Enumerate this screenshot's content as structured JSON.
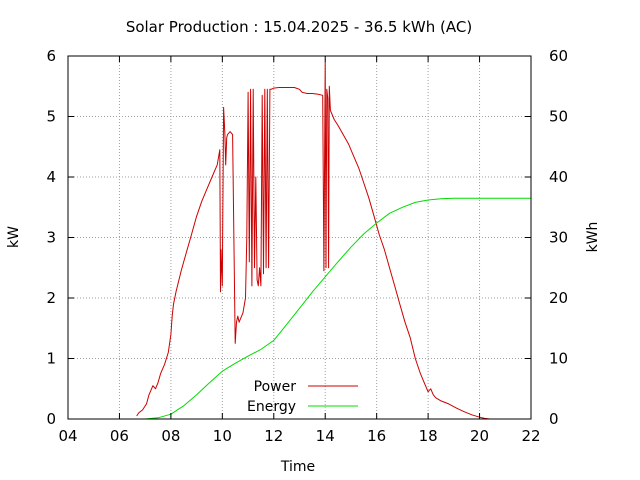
{
  "chart_data": {
    "type": "line",
    "title": "Solar Production : 15.04.2025 - 36.5 kWh (AC)",
    "xlabel": "Time",
    "ylabel": "kW",
    "y2label": "kWh",
    "xlim": [
      4,
      22
    ],
    "ylim": [
      0,
      6
    ],
    "y2lim": [
      0,
      60
    ],
    "xticks": [
      "04",
      "06",
      "08",
      "10",
      "12",
      "14",
      "16",
      "18",
      "20",
      "22"
    ],
    "yticks": [
      "0",
      "1",
      "2",
      "3",
      "4",
      "5",
      "6"
    ],
    "y2ticks": [
      "0",
      "10",
      "20",
      "30",
      "40",
      "50",
      "60"
    ],
    "grid": true,
    "legend_position": "bottom-center",
    "colors": {
      "power": "#cc0000",
      "energy": "#00dd00",
      "axis": "#000000",
      "grid": "#a0a0a0"
    },
    "series": [
      {
        "name": "Power",
        "axis": "left",
        "x": [
          6.67,
          6.75,
          6.9,
          7.05,
          7.15,
          7.3,
          7.4,
          7.5,
          7.6,
          7.75,
          7.9,
          8.0,
          8.05,
          8.1,
          8.2,
          8.4,
          8.6,
          8.8,
          9.0,
          9.2,
          9.4,
          9.6,
          9.8,
          9.9,
          9.93,
          9.95,
          10.0,
          10.05,
          10.1,
          10.13,
          10.17,
          10.2,
          10.3,
          10.4,
          10.5,
          10.55,
          10.6,
          10.65,
          10.7,
          10.8,
          10.9,
          10.95,
          11.0,
          11.05,
          11.1,
          11.15,
          11.2,
          11.25,
          11.3,
          11.35,
          11.4,
          11.45,
          11.5,
          11.55,
          11.6,
          11.65,
          11.7,
          11.75,
          11.8,
          11.85,
          11.9,
          12.0,
          12.2,
          12.5,
          12.8,
          13.0,
          13.1,
          13.3,
          13.5,
          13.7,
          13.9,
          13.95,
          14.0,
          14.03,
          14.06,
          14.1,
          14.13,
          14.16,
          14.2,
          14.25,
          14.35,
          14.5,
          14.7,
          14.9,
          15.1,
          15.3,
          15.5,
          15.7,
          15.9,
          16.1,
          16.3,
          16.5,
          16.7,
          16.9,
          17.1,
          17.3,
          17.5,
          17.7,
          17.9,
          18.0,
          18.1,
          18.2,
          18.3,
          18.5,
          18.8,
          19.1,
          19.4,
          19.7,
          20.0,
          20.2,
          20.4
        ],
        "values": [
          0.05,
          0.1,
          0.15,
          0.25,
          0.4,
          0.55,
          0.5,
          0.6,
          0.75,
          0.9,
          1.1,
          1.4,
          1.7,
          1.9,
          2.1,
          2.45,
          2.75,
          3.05,
          3.35,
          3.6,
          3.8,
          4.0,
          4.2,
          4.45,
          2.1,
          2.8,
          2.2,
          5.15,
          4.7,
          4.2,
          4.65,
          4.7,
          4.75,
          4.7,
          1.25,
          1.6,
          1.7,
          1.6,
          1.65,
          1.75,
          2.0,
          3.0,
          5.4,
          2.6,
          5.45,
          2.2,
          5.45,
          2.5,
          4.0,
          2.3,
          2.2,
          2.5,
          2.2,
          5.35,
          2.4,
          5.45,
          2.5,
          5.45,
          2.5,
          5.45,
          5.45,
          5.47,
          5.48,
          5.48,
          5.48,
          5.45,
          5.4,
          5.38,
          5.38,
          5.37,
          5.35,
          2.45,
          5.9,
          2.5,
          5.45,
          5.3,
          2.5,
          5.5,
          5.1,
          5.05,
          4.95,
          4.85,
          4.7,
          4.55,
          4.35,
          4.15,
          3.9,
          3.65,
          3.35,
          3.05,
          2.8,
          2.5,
          2.2,
          1.9,
          1.6,
          1.35,
          1.0,
          0.75,
          0.55,
          0.45,
          0.5,
          0.4,
          0.35,
          0.3,
          0.25,
          0.18,
          0.12,
          0.07,
          0.03,
          0.01,
          0.0
        ]
      },
      {
        "name": "Energy",
        "axis": "right",
        "x": [
          7.0,
          7.5,
          8.0,
          8.5,
          9.0,
          9.5,
          10.0,
          10.5,
          11.0,
          11.5,
          12.0,
          12.5,
          13.0,
          13.5,
          14.0,
          14.5,
          15.0,
          15.5,
          16.0,
          16.5,
          17.0,
          17.5,
          18.0,
          18.5,
          19.0,
          19.5,
          20.0,
          21.0,
          22.0
        ],
        "values": [
          0.0,
          0.2,
          0.8,
          2.2,
          4.0,
          6.0,
          7.9,
          9.2,
          10.4,
          11.5,
          13.0,
          15.6,
          18.3,
          21.0,
          23.5,
          26.0,
          28.4,
          30.6,
          32.4,
          34.0,
          35.0,
          35.8,
          36.2,
          36.4,
          36.5,
          36.5,
          36.5,
          36.5,
          36.5
        ]
      }
    ]
  }
}
